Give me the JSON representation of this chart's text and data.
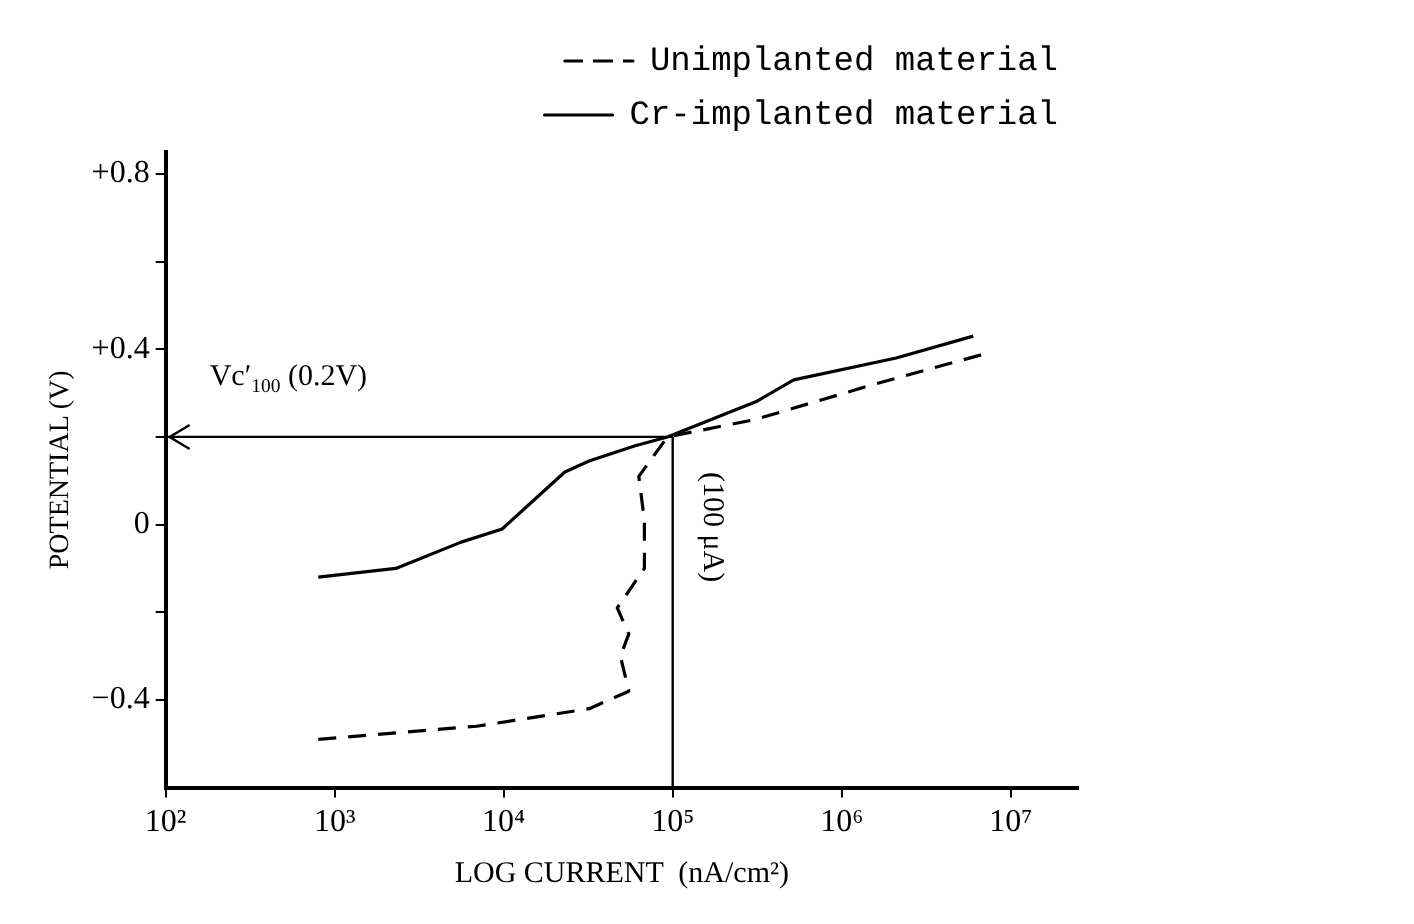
{
  "chart_data": {
    "type": "line",
    "xlabel": "LOG CURRENT  (nA/cm²)",
    "ylabel": "POTENTIAL (V)",
    "log": "x",
    "xlim": [
      100,
      25000000
    ],
    "xticks": [
      {
        "value": 100,
        "label": "10²"
      },
      {
        "value": 1000,
        "label": "10³"
      },
      {
        "value": 10000,
        "label": "10⁴"
      },
      {
        "value": 100000,
        "label": "10⁵"
      },
      {
        "value": 1000000,
        "label": "10⁶"
      },
      {
        "value": 10000000,
        "label": "10⁷"
      }
    ],
    "ylim": [
      -0.6,
      0.85
    ],
    "yticks": [
      {
        "value": -0.4,
        "label": "−0.4"
      },
      {
        "value": -0.2,
        "label": null
      },
      0,
      {
        "value": 0.2,
        "label": null
      },
      {
        "value": 0.4,
        "label": "+0.4"
      },
      {
        "value": 0.6,
        "label": null
      },
      {
        "value": 0.8,
        "label": "+0.8"
      }
    ],
    "grid": false,
    "legend": "top right",
    "marker": "none",
    "series": [
      {
        "name": "Unimplanted material",
        "color": "#000000",
        "line_style": "dashed",
        "x": [
          800,
          6900,
          32000,
          55000,
          49000,
          55000,
          47000,
          68000,
          68000,
          63000,
          93000,
          310000,
          1550000,
          7100000
        ],
        "values": [
          -0.49,
          -0.46,
          -0.42,
          -0.38,
          -0.3,
          -0.25,
          -0.19,
          -0.1,
          0.01,
          0.11,
          0.2,
          0.24,
          0.32,
          0.39
        ]
      },
      {
        "name": "Cr-implanted material",
        "color": "#000000",
        "line_style": "solid",
        "x": [
          800,
          2300,
          5600,
          9800,
          15000,
          23000,
          32000,
          60000,
          93000,
          310000,
          520000,
          2100000,
          6000000
        ],
        "values": [
          -0.12,
          -0.1,
          -0.04,
          -0.01,
          0.055,
          0.12,
          0.145,
          0.18,
          0.2,
          0.28,
          0.33,
          0.38,
          0.43
        ]
      }
    ],
    "ref_lines": [
      {
        "axis": "y",
        "value": 0.2,
        "label": "Vc′$_{100}$ (0.2V)"
      },
      {
        "axis": "x",
        "value": 100000,
        "label": "(100 μA)"
      }
    ]
  }
}
